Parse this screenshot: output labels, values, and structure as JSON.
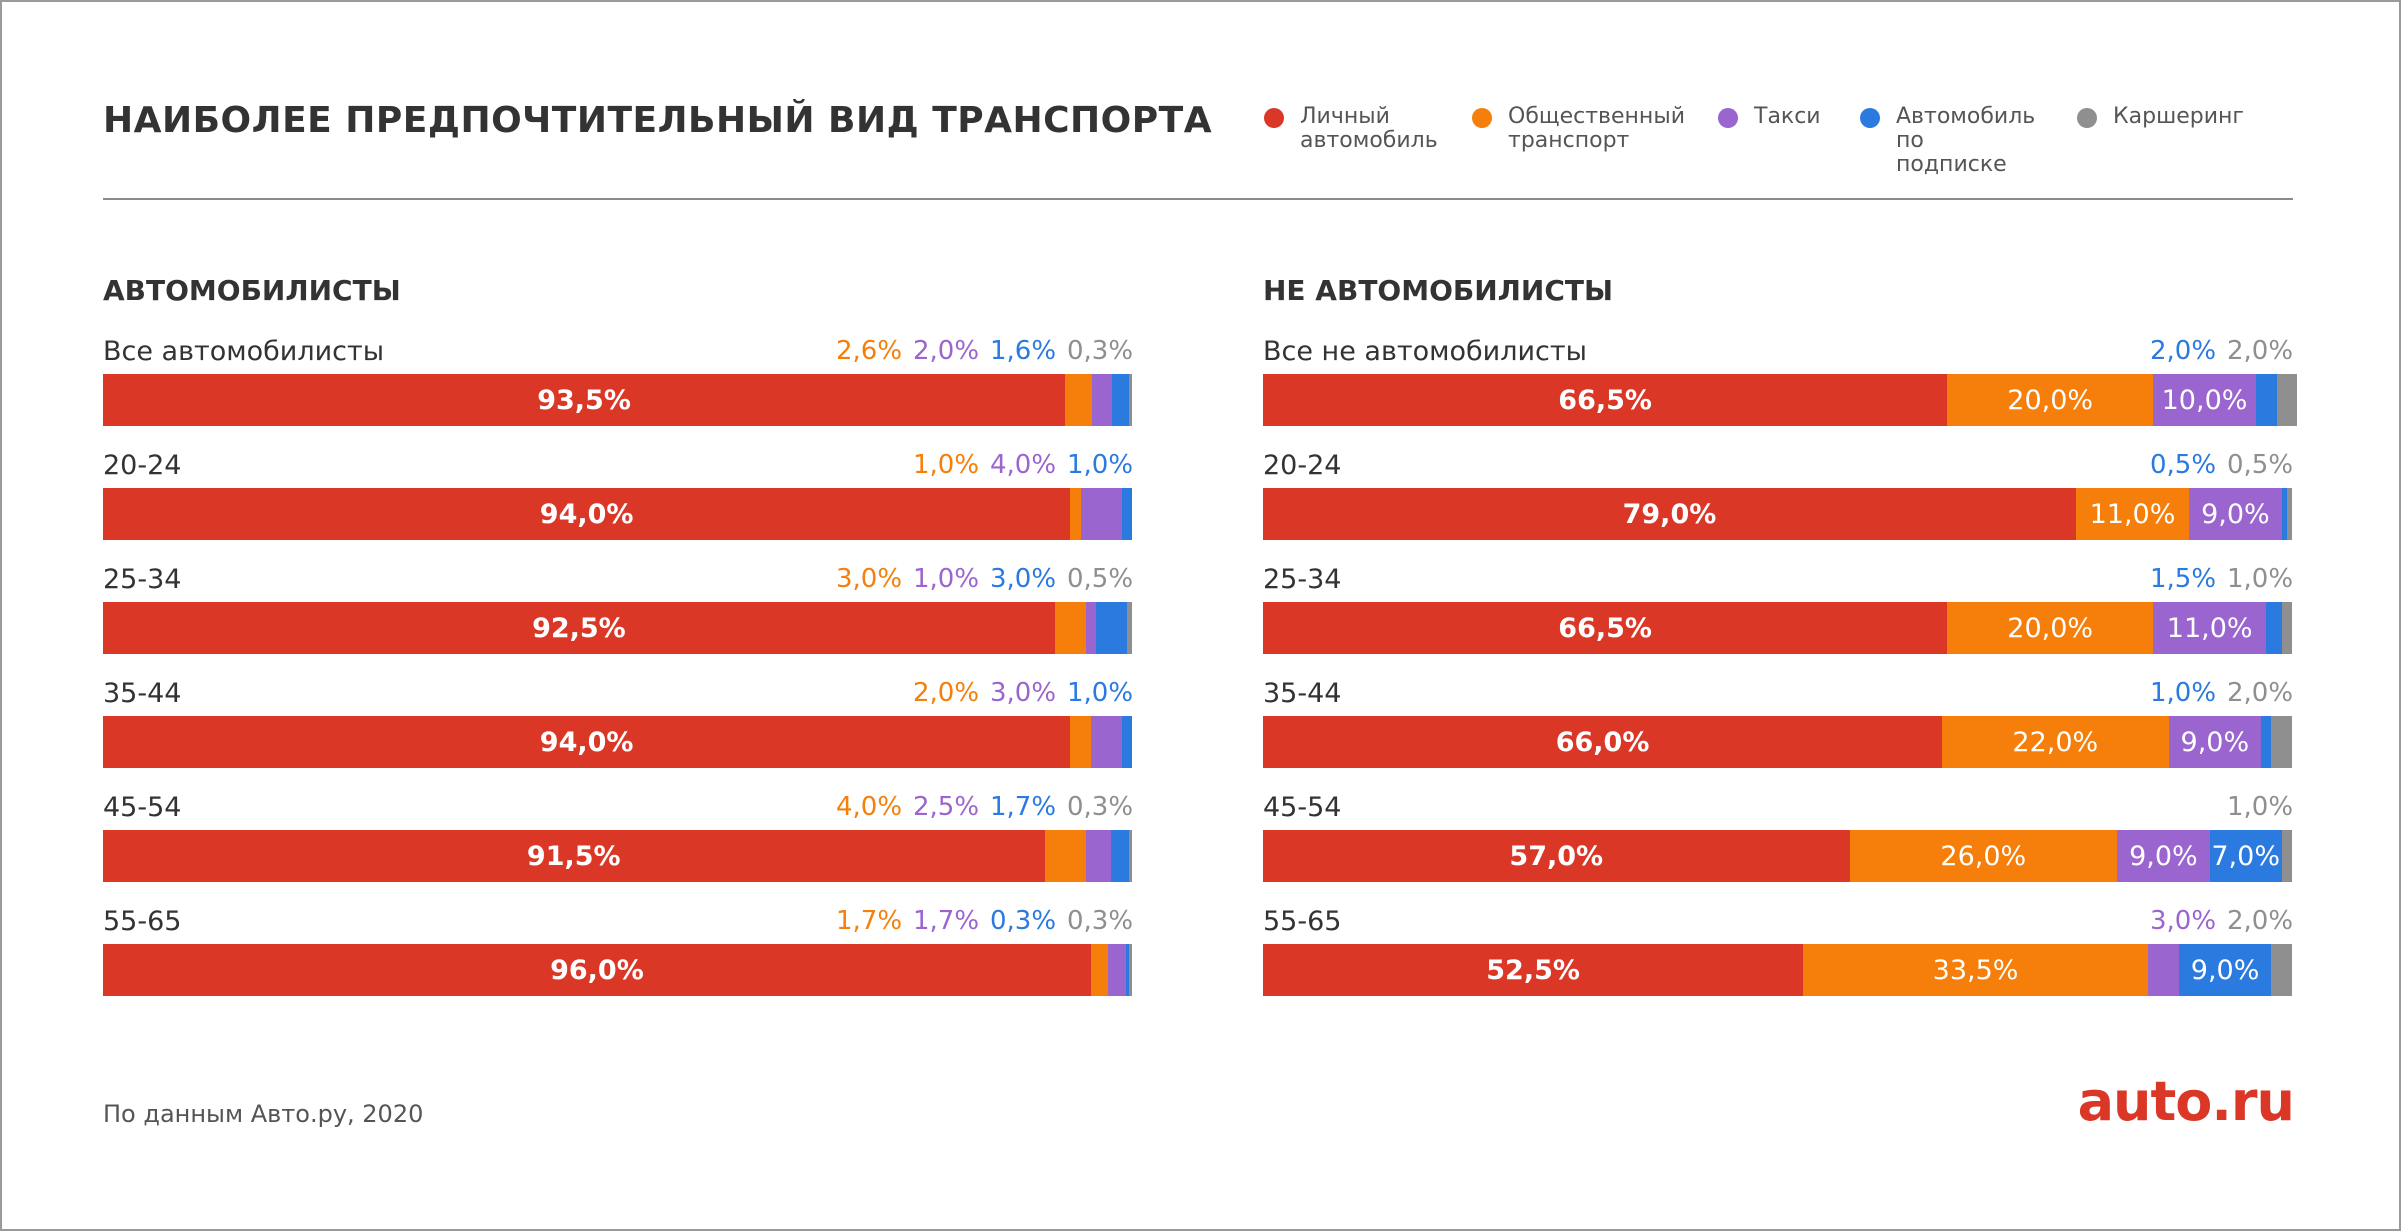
{
  "title": "НАИБОЛЕЕ ПРЕДПОЧТИТЕЛЬНЫЙ ВИД ТРАНСПОРТА",
  "legend": [
    {
      "label": "Личный\nавтомобиль",
      "color": "#db3727"
    },
    {
      "label": "Общественный\nтранспорт",
      "color": "#f57f0a"
    },
    {
      "label": "Такси",
      "color": "#9b65cf"
    },
    {
      "label": "Автомобиль\nпо подписке",
      "color": "#2a7ae0"
    },
    {
      "label": "Каршеринг",
      "color": "#8f8f8f"
    }
  ],
  "source": "По данным Авто.ру, 2020",
  "logo": "auto.ru",
  "chart_data": [
    {
      "type": "bar",
      "orientation": "horizontal",
      "stacked": true,
      "title": "АВТОМОБИЛИСТЫ",
      "categories": [
        "Все автомобилисты",
        "20-24",
        "25-34",
        "35-44",
        "45-54",
        "55-65"
      ],
      "series": [
        {
          "name": "Личный автомобиль",
          "color": "#db3727",
          "values": [
            93.5,
            94.0,
            92.5,
            94.0,
            91.5,
            96.0
          ],
          "labels": [
            "93,5%",
            "94,0%",
            "92,5%",
            "94,0%",
            "91,5%",
            "96,0%"
          ]
        },
        {
          "name": "Общественный транспорт",
          "color": "#f57f0a",
          "values": [
            2.6,
            1.0,
            3.0,
            2.0,
            4.0,
            1.7
          ],
          "labels": [
            "2,6%",
            "1,0%",
            "3,0%",
            "2,0%",
            "4,0%",
            "1,7%"
          ]
        },
        {
          "name": "Такси",
          "color": "#9b65cf",
          "values": [
            2.0,
            4.0,
            1.0,
            3.0,
            2.5,
            1.7
          ],
          "labels": [
            "2,0%",
            "4,0%",
            "1,0%",
            "3,0%",
            "2,5%",
            "1,7%"
          ]
        },
        {
          "name": "Автомобиль по подписке",
          "color": "#2a7ae0",
          "values": [
            1.6,
            1.0,
            3.0,
            1.0,
            1.7,
            0.3
          ],
          "labels": [
            "1,6%",
            "1,0%",
            "3,0%",
            "1,0%",
            "1,7%",
            "0,3%"
          ]
        },
        {
          "name": "Каршеринг",
          "color": "#8f8f8f",
          "values": [
            0.3,
            0,
            0.5,
            0,
            0.3,
            0.3
          ],
          "labels": [
            "0,3%",
            "",
            "0,5%",
            "",
            "0,3%",
            "0,3%"
          ]
        }
      ]
    },
    {
      "type": "bar",
      "orientation": "horizontal",
      "stacked": true,
      "title": "НЕ АВТОМОБИЛИСТЫ",
      "categories": [
        "Все не автомобилисты",
        "20-24",
        "25-34",
        "35-44",
        "45-54",
        "55-65"
      ],
      "series": [
        {
          "name": "Личный автомобиль",
          "color": "#db3727",
          "values": [
            66.5,
            79.0,
            66.5,
            66.0,
            57.0,
            52.5
          ],
          "labels": [
            "66,5%",
            "79,0%",
            "66,5%",
            "66,0%",
            "57,0%",
            "52,5%"
          ]
        },
        {
          "name": "Общественный транспорт",
          "color": "#f57f0a",
          "values": [
            20.0,
            11.0,
            20.0,
            22.0,
            26.0,
            33.5
          ],
          "labels": [
            "20,0%",
            "11,0%",
            "20,0%",
            "22,0%",
            "26,0%",
            "33,5%"
          ]
        },
        {
          "name": "Такси",
          "color": "#9b65cf",
          "values": [
            10.0,
            9.0,
            11.0,
            9.0,
            9.0,
            3.0
          ],
          "labels": [
            "10,0%",
            "9,0%",
            "11,0%",
            "9,0%",
            "9,0%",
            "3,0%"
          ]
        },
        {
          "name": "Автомобиль по подписке",
          "color": "#2a7ae0",
          "values": [
            2.0,
            0.5,
            1.5,
            1.0,
            7.0,
            9.0
          ],
          "labels": [
            "2,0%",
            "0,5%",
            "1,5%",
            "1,0%",
            "7,0%",
            "9,0%"
          ]
        },
        {
          "name": "Каршеринг",
          "color": "#8f8f8f",
          "values": [
            2.0,
            0.5,
            1.0,
            2.0,
            1.0,
            2.0
          ],
          "labels": [
            "2,0%",
            "0,5%",
            "1,0%",
            "2,0%",
            "1,0%",
            "2,0%"
          ]
        }
      ]
    }
  ]
}
